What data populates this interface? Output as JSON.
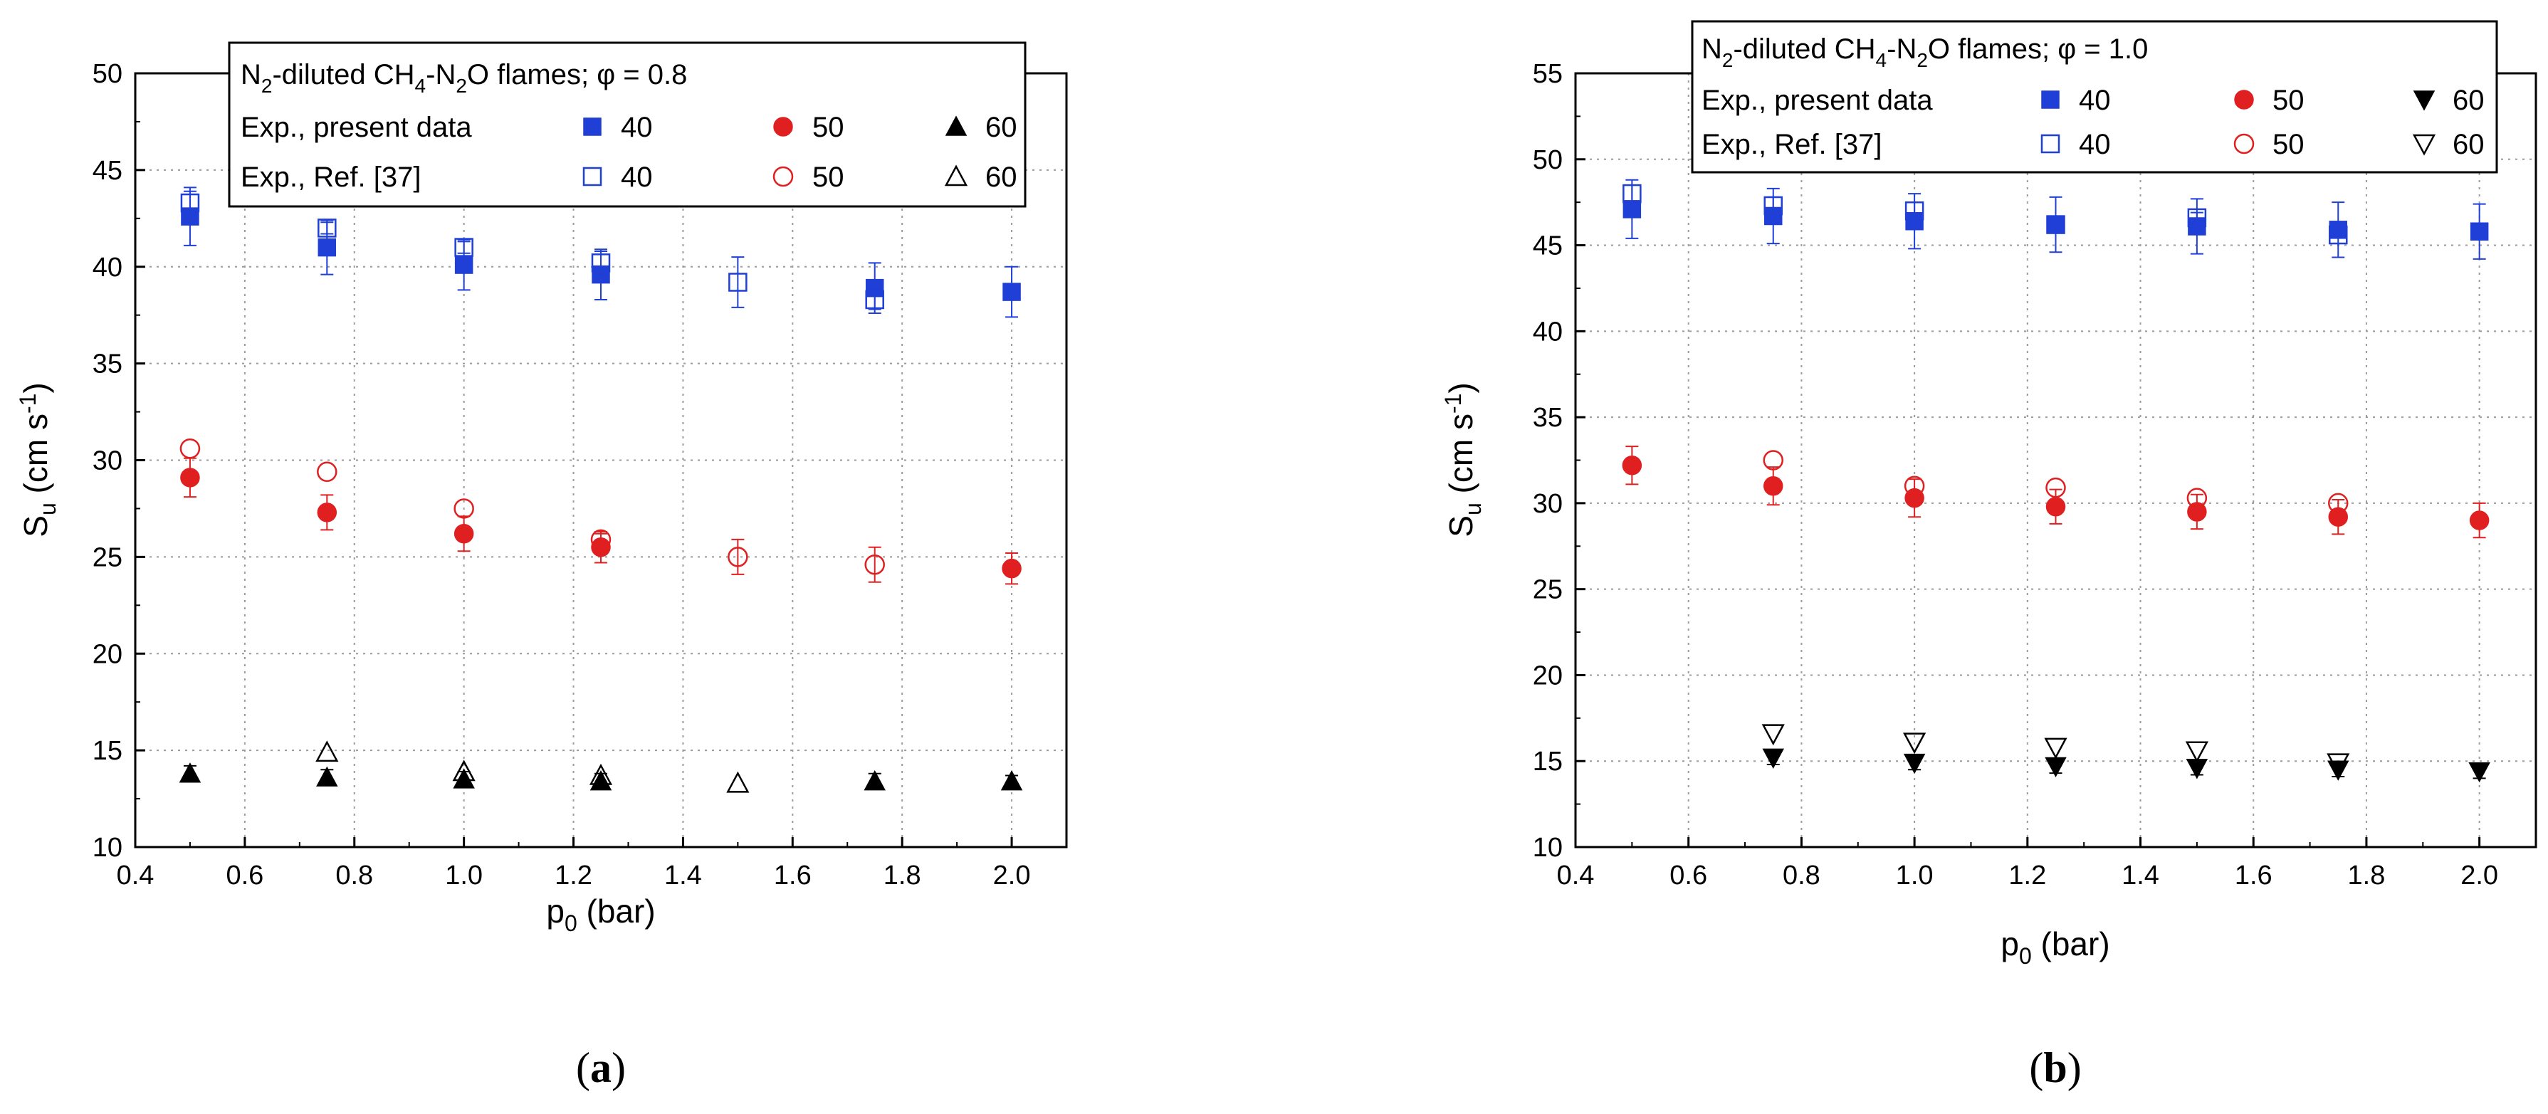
{
  "colors": {
    "blue": "#1f3fd6",
    "red": "#e02020",
    "black": "#000000",
    "grid": "#9a9a9a"
  },
  "chart_data": [
    {
      "type": "scatter",
      "panel_label": "(a)",
      "panel_label_pre": "(",
      "panel_label_mid": "a",
      "panel_label_post": ")",
      "title": "N2-diluted CH4-N2O flames; φ = 0.8",
      "xlabel": "p0 (bar)",
      "ylabel": "Su (cm s-1)",
      "xlim": [
        0.4,
        2.1
      ],
      "ylim": [
        10,
        50
      ],
      "xticks": [
        "0.4",
        "0.6",
        "0.8",
        "1.0",
        "1.2",
        "1.4",
        "1.6",
        "1.8",
        "2.0"
      ],
      "yticks": [
        "10",
        "15",
        "20",
        "25",
        "30",
        "35",
        "40",
        "45",
        "50"
      ],
      "grid": true,
      "legend": {
        "position": "top",
        "row1": "Exp., present data",
        "row2": "Exp., Ref. [37]",
        "series_labels": [
          "40",
          "50",
          "60"
        ]
      },
      "series": [
        {
          "name": "40 present",
          "color": "blue",
          "marker": "square-filled",
          "x": [
            0.5,
            0.75,
            1.0,
            1.25,
            1.75,
            2.0
          ],
          "y": [
            42.6,
            41.0,
            40.1,
            39.6,
            38.9,
            38.7
          ],
          "err": [
            1.5,
            1.4,
            1.3,
            1.3,
            1.3,
            1.3
          ]
        },
        {
          "name": "40 Ref. [37]",
          "color": "blue",
          "marker": "square-open",
          "x": [
            0.5,
            0.75,
            1.0,
            1.25,
            1.5,
            1.75
          ],
          "y": [
            43.3,
            42.0,
            41.0,
            40.2,
            39.2,
            38.3
          ],
          "err": [
            0.6,
            0.3,
            0.3,
            0.6,
            1.3,
            0.5
          ]
        },
        {
          "name": "50 present",
          "color": "red",
          "marker": "circle-filled",
          "x": [
            0.5,
            0.75,
            1.0,
            1.25,
            2.0
          ],
          "y": [
            29.1,
            27.3,
            26.2,
            25.5,
            24.4
          ],
          "err": [
            1.0,
            0.9,
            0.9,
            0.8,
            0.8
          ]
        },
        {
          "name": "50 Ref. [37]",
          "color": "red",
          "marker": "circle-open",
          "x": [
            0.5,
            0.75,
            1.0,
            1.25,
            1.5,
            1.75
          ],
          "y": [
            30.6,
            29.4,
            27.5,
            25.9,
            25.0,
            24.6
          ],
          "err": [
            0,
            0,
            0,
            0.3,
            0.9,
            0.9
          ]
        },
        {
          "name": "60 present",
          "color": "black",
          "marker": "triangle-up-filled",
          "x": [
            0.5,
            0.75,
            1.0,
            1.25,
            1.75,
            2.0
          ],
          "y": [
            13.8,
            13.6,
            13.5,
            13.4,
            13.4,
            13.4
          ],
          "err": [
            0.4,
            0.4,
            0.4,
            0.4,
            0.4,
            0.3
          ]
        },
        {
          "name": "60 Ref. [37]",
          "color": "black",
          "marker": "triangle-up-open",
          "x": [
            0.75,
            1.0,
            1.25,
            1.5
          ],
          "y": [
            14.9,
            13.9,
            13.7,
            13.3
          ],
          "err": [
            0,
            0,
            0,
            0
          ]
        }
      ]
    },
    {
      "type": "scatter",
      "panel_label": "(b)",
      "panel_label_pre": "(",
      "panel_label_mid": "b",
      "panel_label_post": ")",
      "title": "N2-diluted CH4-N2O flames; φ = 1.0",
      "xlabel": "p0 (bar)",
      "ylabel": "Su (cm s-1)",
      "xlim": [
        0.4,
        2.1
      ],
      "ylim": [
        10,
        55
      ],
      "xticks": [
        "0.4",
        "0.6",
        "0.8",
        "1.0",
        "1.2",
        "1.4",
        "1.6",
        "1.8",
        "2.0"
      ],
      "yticks": [
        "10",
        "15",
        "20",
        "25",
        "30",
        "35",
        "40",
        "45",
        "50",
        "55"
      ],
      "grid": true,
      "legend": {
        "position": "top",
        "row1": "Exp., present data",
        "row2": "Exp., Ref. [37]",
        "series_labels": [
          "40",
          "50",
          "60"
        ]
      },
      "series": [
        {
          "name": "40 present",
          "color": "blue",
          "marker": "square-filled",
          "x": [
            0.5,
            0.75,
            1.0,
            1.25,
            1.5,
            1.75,
            2.0
          ],
          "y": [
            47.1,
            46.7,
            46.4,
            46.2,
            46.1,
            45.9,
            45.8
          ],
          "err": [
            1.7,
            1.6,
            1.6,
            1.6,
            1.6,
            1.6,
            1.6
          ]
        },
        {
          "name": "40 Ref. [37]",
          "color": "blue",
          "marker": "square-open",
          "x": [
            0.5,
            0.75,
            1.0,
            1.25,
            1.5,
            1.75
          ],
          "y": [
            48.0,
            47.3,
            47.0,
            46.2,
            46.6,
            45.6
          ],
          "err": [
            0.5,
            0.5,
            0.5,
            0,
            0.3,
            0
          ]
        },
        {
          "name": "50 present",
          "color": "red",
          "marker": "circle-filled",
          "x": [
            0.5,
            0.75,
            1.0,
            1.25,
            1.5,
            1.75,
            2.0
          ],
          "y": [
            32.2,
            31.0,
            30.3,
            29.8,
            29.5,
            29.2,
            29.0
          ],
          "err": [
            1.1,
            1.1,
            1.1,
            1.0,
            1.0,
            1.0,
            1.0
          ]
        },
        {
          "name": "50 Ref. [37]",
          "color": "red",
          "marker": "circle-open",
          "x": [
            0.75,
            1.0,
            1.25,
            1.5,
            1.75
          ],
          "y": [
            32.5,
            31.0,
            30.9,
            30.3,
            30.0
          ],
          "err": [
            0,
            0,
            0,
            0,
            0
          ]
        },
        {
          "name": "60 present",
          "color": "black",
          "marker": "triangle-down-filled",
          "x": [
            0.75,
            1.0,
            1.25,
            1.5,
            1.75,
            2.0
          ],
          "y": [
            15.2,
            14.9,
            14.7,
            14.6,
            14.5,
            14.4
          ],
          "err": [
            0.4,
            0.4,
            0.4,
            0.4,
            0.4,
            0.4
          ]
        },
        {
          "name": "60 Ref. [37]",
          "color": "black",
          "marker": "triangle-down-open",
          "x": [
            0.75,
            1.0,
            1.25,
            1.5,
            1.75
          ],
          "y": [
            16.6,
            16.1,
            15.8,
            15.6,
            14.9
          ],
          "err": [
            0,
            0,
            0,
            0,
            0
          ]
        }
      ]
    }
  ]
}
